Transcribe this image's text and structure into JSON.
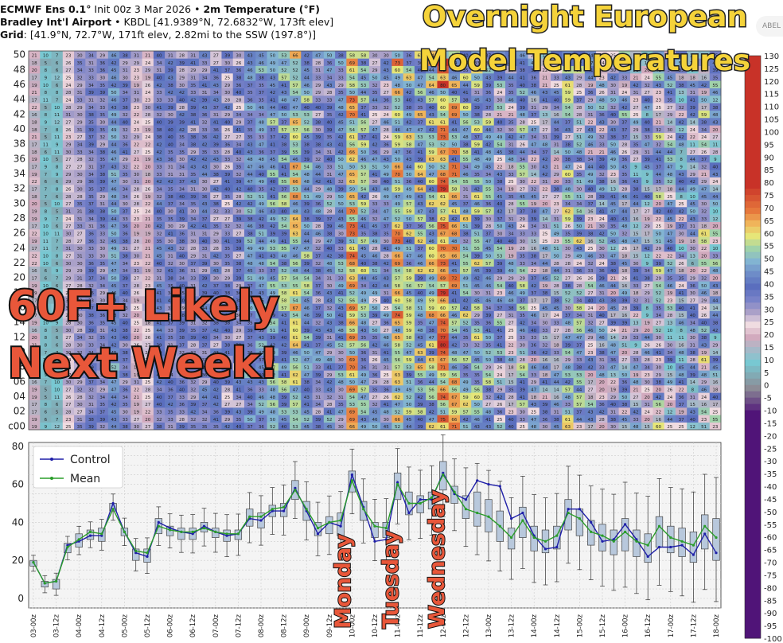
{
  "header": {
    "line1_a": "ECMWF Ens 0.1°",
    "line1_b": " Init 00z 3 Mar 2026 • ",
    "line1_c": "2m Temperature (°F)",
    "line2_a": "Bradley Int'l Airport",
    "line2_b": " • KBDL [41.9389°N, 72.6832°W, 173ft elev]",
    "line3_a": "Grid",
    "line3_b": ": [41.9°N, 72.7°W, 171ft elev, 2.82mi to the SSW (197.8°)]"
  },
  "overlay": {
    "title_line1": "Overnight European",
    "title_line2": "Model Temperatures",
    "callout_line1": "60F+ Likely",
    "callout_line2": "Next Week!",
    "day1": "Monday",
    "day2": "Tuesday",
    "day3": "Wednesday",
    "logo_text": "ABEL"
  },
  "chart_data": [
    {
      "type": "heatmap",
      "description_rows": "ensemble members",
      "y_tick_labels": [
        "c00",
        "02",
        "04",
        "06",
        "08",
        "10",
        "12",
        "14",
        "16",
        "18",
        "20",
        "22",
        "24",
        "26",
        "28",
        "30",
        "32",
        "34",
        "36",
        "38",
        "40",
        "42",
        "44",
        "46",
        "48",
        "50"
      ],
      "columns": 61,
      "rows": 51
    },
    {
      "type": "line",
      "ylim": [
        -5,
        82
      ],
      "yticks": [
        0,
        20,
        40,
        60,
        80
      ],
      "x_tick_labels": [
        "03-00z",
        "03-12z",
        "04-00z",
        "04-12z",
        "05-00z",
        "05-12z",
        "06-00z",
        "06-12z",
        "07-00z",
        "07-12z",
        "08-00z",
        "08-12z",
        "09-00z",
        "09-12z",
        "10-00z",
        "10-12z",
        "11-00z",
        "11-12z",
        "12-00z",
        "12-12z",
        "13-00z",
        "13-12z",
        "14-00z",
        "14-12z",
        "15-00z",
        "15-12z",
        "16-00z",
        "16-12z",
        "17-00z",
        "17-12z",
        "18-00z"
      ],
      "legend": [
        "Control",
        "Mean"
      ],
      "legend_position": "top-left",
      "grid": true,
      "series": [
        {
          "name": "Control",
          "color": "#1f1fa8",
          "values": [
            19,
            8,
            9,
            28,
            30,
            33,
            33,
            50,
            35,
            24,
            22,
            40,
            37,
            35,
            34,
            38,
            35,
            33,
            34,
            42,
            41,
            46,
            46,
            58,
            46,
            34,
            40,
            38,
            65,
            48,
            30,
            31,
            61,
            45,
            52,
            52,
            66,
            55,
            52,
            62,
            60,
            59,
            42,
            45,
            33,
            26,
            27,
            47,
            47,
            40,
            30,
            31,
            39,
            31,
            22,
            27,
            27,
            28,
            23,
            34,
            24
          ]
        },
        {
          "name": "Mean",
          "color": "#2a9d2a",
          "values": [
            19,
            8,
            9,
            27,
            31,
            35,
            34,
            47,
            35,
            25,
            24,
            38,
            36,
            35,
            35,
            37,
            35,
            34,
            34,
            43,
            43,
            47,
            48,
            57,
            47,
            37,
            40,
            41,
            62,
            47,
            38,
            37,
            60,
            50,
            50,
            53,
            65,
            56,
            47,
            45,
            43,
            38,
            32,
            41,
            32,
            30,
            33,
            45,
            42,
            35,
            33,
            30,
            35,
            30,
            28,
            38,
            32,
            30,
            28,
            38,
            32
          ]
        }
      ],
      "box_low": [
        17,
        6,
        5,
        24,
        27,
        31,
        30,
        46,
        33,
        20,
        19,
        34,
        33,
        31,
        31,
        35,
        32,
        30,
        31,
        38,
        37,
        43,
        43,
        52,
        41,
        33,
        34,
        33,
        56,
        41,
        32,
        32,
        52,
        44,
        45,
        47,
        57,
        50,
        42,
        38,
        35,
        30,
        26,
        32,
        25,
        24,
        26,
        36,
        33,
        28,
        25,
        23,
        25,
        22,
        19,
        27,
        24,
        22,
        19,
        26,
        20
      ],
      "box_high": [
        20,
        9,
        10,
        29,
        34,
        36,
        37,
        50,
        37,
        26,
        26,
        42,
        38,
        37,
        37,
        40,
        37,
        36,
        36,
        47,
        45,
        49,
        50,
        62,
        51,
        40,
        43,
        45,
        67,
        51,
        40,
        40,
        66,
        56,
        54,
        56,
        72,
        59,
        54,
        56,
        52,
        46,
        37,
        48,
        38,
        36,
        38,
        52,
        47,
        41,
        39,
        36,
        42,
        36,
        34,
        43,
        38,
        37,
        35,
        44,
        42
      ]
    }
  ],
  "colorbar": {
    "labels": [
      "130",
      "125",
      "120",
      "115",
      "110",
      "105",
      "100",
      "95",
      "90",
      "85",
      "80",
      "75",
      "70",
      "65",
      "60",
      "55",
      "50",
      "45",
      "40",
      "35",
      "30",
      "25",
      "20",
      "15",
      "10",
      "5",
      "0",
      "-5",
      "-10",
      "-15",
      "-20",
      "-25",
      "-30",
      "-35",
      "-40",
      "-45",
      "-50",
      "-55",
      "-60",
      "-65",
      "-70",
      "-75",
      "-80",
      "-85",
      "-90",
      "-95",
      "-100"
    ]
  }
}
